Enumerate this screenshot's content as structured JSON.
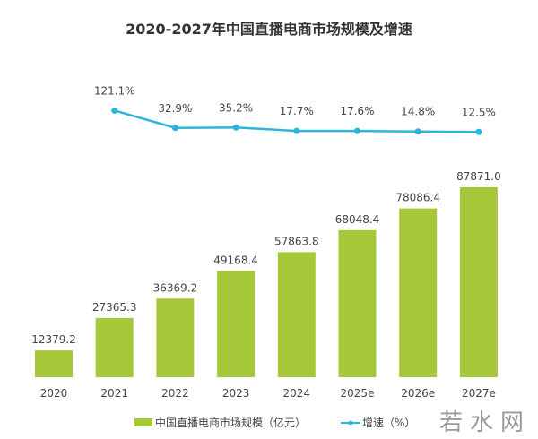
{
  "chart_data": {
    "type": "bar",
    "title": "2020-2027年中国直播电商市场规模及增速",
    "categories": [
      "2020",
      "2021",
      "2022",
      "2023",
      "2024",
      "2025e",
      "2026e",
      "2027e"
    ],
    "series": [
      {
        "name": "中国直播电商市场规模（亿元）",
        "type": "bar",
        "color": "#a6c838",
        "values": [
          12379.2,
          27365.3,
          36369.2,
          49168.4,
          57863.8,
          68048.4,
          78086.4,
          87871.0
        ]
      },
      {
        "name": "增速（%）",
        "type": "line",
        "color": "#2bb5dd",
        "values": [
          null,
          121.1,
          32.9,
          35.2,
          17.7,
          17.6,
          14.8,
          12.5
        ]
      }
    ],
    "legend": "bottom",
    "grid": false
  },
  "watermark": "若水网"
}
